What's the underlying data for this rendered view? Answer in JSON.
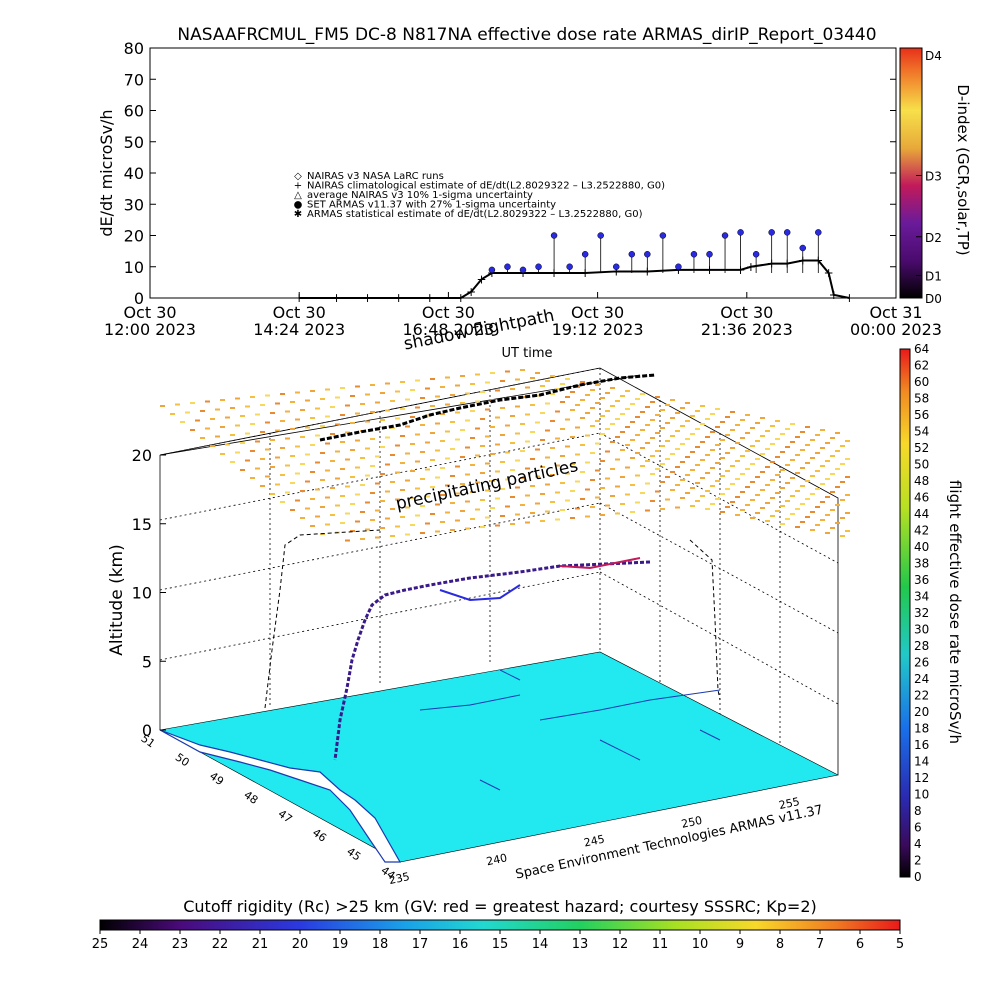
{
  "chart_data": [
    {
      "type": "scatter",
      "title": "NASAAFRCMUL_FM5 DC-8    N817NA effective dose rate ARMAS_dirIP_Report_03440",
      "ylabel": "dE/dt microSv/h",
      "xlabel": "UT time",
      "ylim": [
        0,
        80
      ],
      "yticks": [
        "0",
        "10",
        "20",
        "30",
        "40",
        "50",
        "60",
        "70",
        "80"
      ],
      "xticks": [
        {
          "l1": "Oct 30",
          "l2": "12:00 2023"
        },
        {
          "l1": "Oct 30",
          "l2": "14:24 2023"
        },
        {
          "l1": "Oct 30",
          "l2": "16:48 2023"
        },
        {
          "l1": "Oct 30",
          "l2": "19:12 2023"
        },
        {
          "l1": "Oct 30",
          "l2": "21:36 2023"
        },
        {
          "l1": "Oct 31",
          "l2": "00:00 2023"
        }
      ],
      "legend": [
        {
          "symbol": "◇",
          "text": "NAIRAS v3 NASA LaRC runs"
        },
        {
          "symbol": "+",
          "text": "NAIRAS climatological estimate of dE/dt(L2.8029322 – L3.2522880, G0)"
        },
        {
          "symbol": "△",
          "text": "average NAIRAS v3 10% 1-sigma uncertainty"
        },
        {
          "symbol": "●",
          "text": "SET ARMAS v11.37 with 27% 1-sigma uncertainty"
        },
        {
          "symbol": "✱",
          "text": "ARMAS statistical estimate of dE/dt(L2.8029322 – L3.2522880, G0)"
        }
      ],
      "legend_placement": "upper-left",
      "series": [
        {
          "name": "NAIRAS climatological estimate",
          "x": [
            "14:24",
            "15:00",
            "15:30",
            "16:00",
            "16:30",
            "17:00",
            "17:10",
            "17:20",
            "17:30",
            "18:00",
            "18:30",
            "19:00",
            "19:30",
            "20:00",
            "20:30",
            "21:00",
            "21:30",
            "21:40",
            "22:00",
            "22:15",
            "22:30",
            "22:45",
            "22:55",
            "23:00",
            "23:15"
          ],
          "values": [
            0,
            0,
            0,
            0,
            0,
            0,
            2,
            6,
            8,
            8,
            8,
            8,
            8.5,
            8.5,
            9,
            9,
            9,
            10,
            11,
            11,
            12,
            12,
            8,
            1,
            0
          ]
        },
        {
          "name": "SET ARMAS v11.37",
          "x": [
            "17:30",
            "17:45",
            "18:00",
            "18:15",
            "18:30",
            "18:45",
            "19:00",
            "19:15",
            "19:30",
            "19:45",
            "20:00",
            "20:15",
            "20:30",
            "20:45",
            "21:00",
            "21:15",
            "21:30",
            "21:45",
            "22:00",
            "22:15",
            "22:30",
            "22:45"
          ],
          "values": [
            9,
            10,
            9,
            10,
            20,
            10,
            14,
            20,
            10,
            14,
            14,
            20,
            10,
            14,
            14,
            20,
            21,
            14,
            21,
            21,
            16,
            21
          ]
        }
      ],
      "colorbar": {
        "label": "D-index (GCR,solar,TP)",
        "ticks": [
          "D0",
          "D1",
          "D2",
          "D3",
          "D4"
        ]
      }
    },
    {
      "type": "scatter",
      "annotations": [
        "shadow flightpath",
        "precipitating particles"
      ],
      "ylabel": "Altitude (km)",
      "zticks": [
        "0",
        "5",
        "10",
        "15",
        "20"
      ],
      "lat_ticks": [
        "51",
        "50",
        "49",
        "48",
        "47",
        "46",
        "45",
        "44"
      ],
      "lon_ticks": [
        "235",
        "240",
        "245",
        "250",
        "255"
      ],
      "credit": "Space Environment Technologies ARMAS v11.37",
      "colorbar": {
        "label": "flight effective dose rate microSv/h",
        "range": [
          0,
          64
        ],
        "ticks": [
          "0",
          "2",
          "4",
          "6",
          "8",
          "10",
          "12",
          "14",
          "16",
          "18",
          "20",
          "22",
          "24",
          "26",
          "28",
          "30",
          "32",
          "34",
          "36",
          "38",
          "40",
          "42",
          "44",
          "46",
          "48",
          "50",
          "52",
          "54",
          "56",
          "58",
          "60",
          "62",
          "64"
        ]
      }
    },
    {
      "type": "heatmap",
      "title": "Cutoff rigidity (Rc) >25 km (GV: red = greatest hazard; courtesy SSSRC; Kp=2)",
      "ticks": [
        "25",
        "24",
        "23",
        "22",
        "21",
        "20",
        "19",
        "18",
        "17",
        "16",
        "15",
        "14",
        "13",
        "12",
        "11",
        "10",
        "9",
        "8",
        "7",
        "6",
        "5"
      ]
    }
  ]
}
